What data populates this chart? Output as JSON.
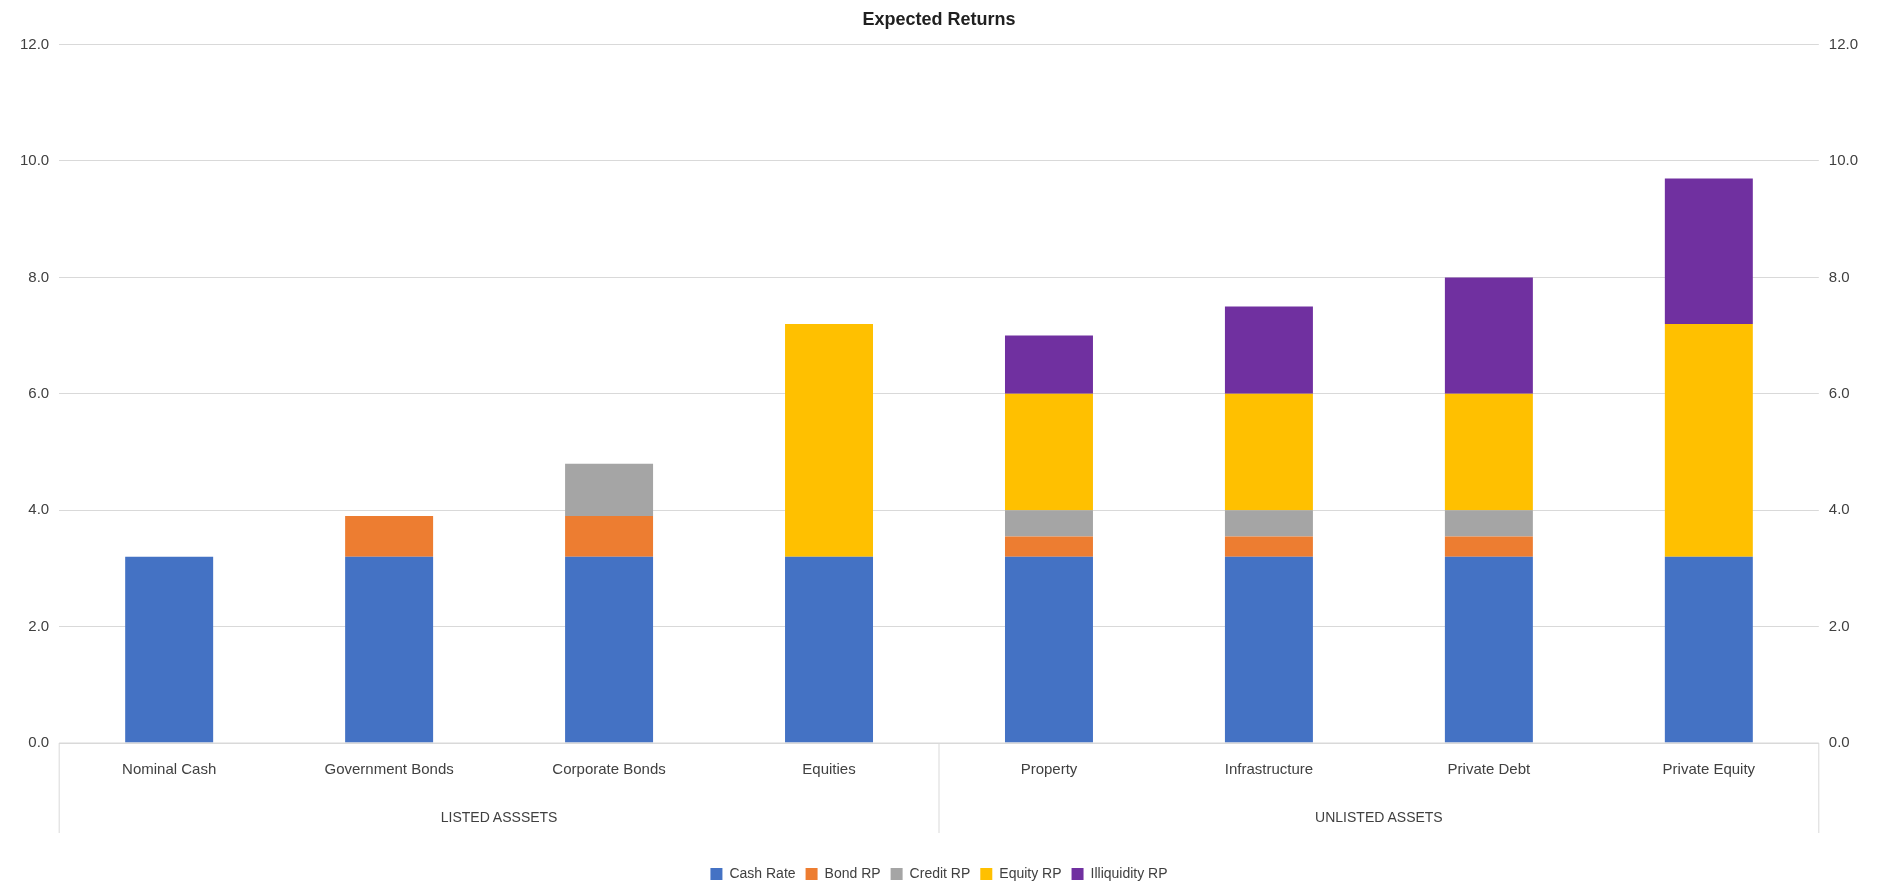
{
  "chart_data": {
    "type": "bar",
    "title": "Expected Returns",
    "stacked": true,
    "categories": [
      "Nominal Cash",
      "Government Bonds",
      "Corporate Bonds",
      "Equities",
      "Property",
      "Infrastructure",
      "Private Debt",
      "Private Equity"
    ],
    "series": [
      {
        "name": "Cash Rate",
        "color": "#4472c4",
        "values": [
          3.2,
          3.2,
          3.2,
          3.2,
          3.2,
          3.2,
          3.2,
          3.2
        ]
      },
      {
        "name": "Bond RP",
        "color": "#ed7d31",
        "values": [
          null,
          0.7,
          0.7,
          null,
          0.35,
          0.35,
          0.35,
          null
        ]
      },
      {
        "name": "Credit RP",
        "color": "#a5a5a5",
        "values": [
          null,
          null,
          0.9,
          null,
          0.45,
          0.45,
          0.45,
          null
        ]
      },
      {
        "name": "Equity RP",
        "color": "#ffc000",
        "values": [
          null,
          null,
          null,
          4.0,
          2.0,
          2.0,
          2.0,
          4.0
        ]
      },
      {
        "name": "Illiquidity RP",
        "color": "#7030a0",
        "values": [
          null,
          null,
          null,
          null,
          1.0,
          1.5,
          2.0,
          2.5
        ]
      }
    ],
    "ylim": [
      0,
      12
    ],
    "yticks": [
      {
        "value": 0,
        "label": "0.0"
      },
      {
        "value": 2,
        "label": "2.0"
      },
      {
        "value": 4,
        "label": "4.0"
      },
      {
        "value": 6,
        "label": "6.0"
      },
      {
        "value": 8,
        "label": "8.0"
      },
      {
        "value": 10,
        "label": "10.0"
      },
      {
        "value": 12,
        "label": "12.0"
      }
    ],
    "y2lim": [
      0,
      12
    ],
    "y2ticks": [
      {
        "value": 0,
        "label": "0.0"
      },
      {
        "value": 2,
        "label": "2.0"
      },
      {
        "value": 4,
        "label": "4.0"
      },
      {
        "value": 6,
        "label": "6.0"
      },
      {
        "value": 8,
        "label": "8.0"
      },
      {
        "value": 10,
        "label": "10.0"
      },
      {
        "value": 12,
        "label": "12.0"
      }
    ],
    "annotations": [
      "LISTED ASSSETS",
      "UNLISTED ASSETS"
    ],
    "grid": "y",
    "legend": "bottom"
  }
}
